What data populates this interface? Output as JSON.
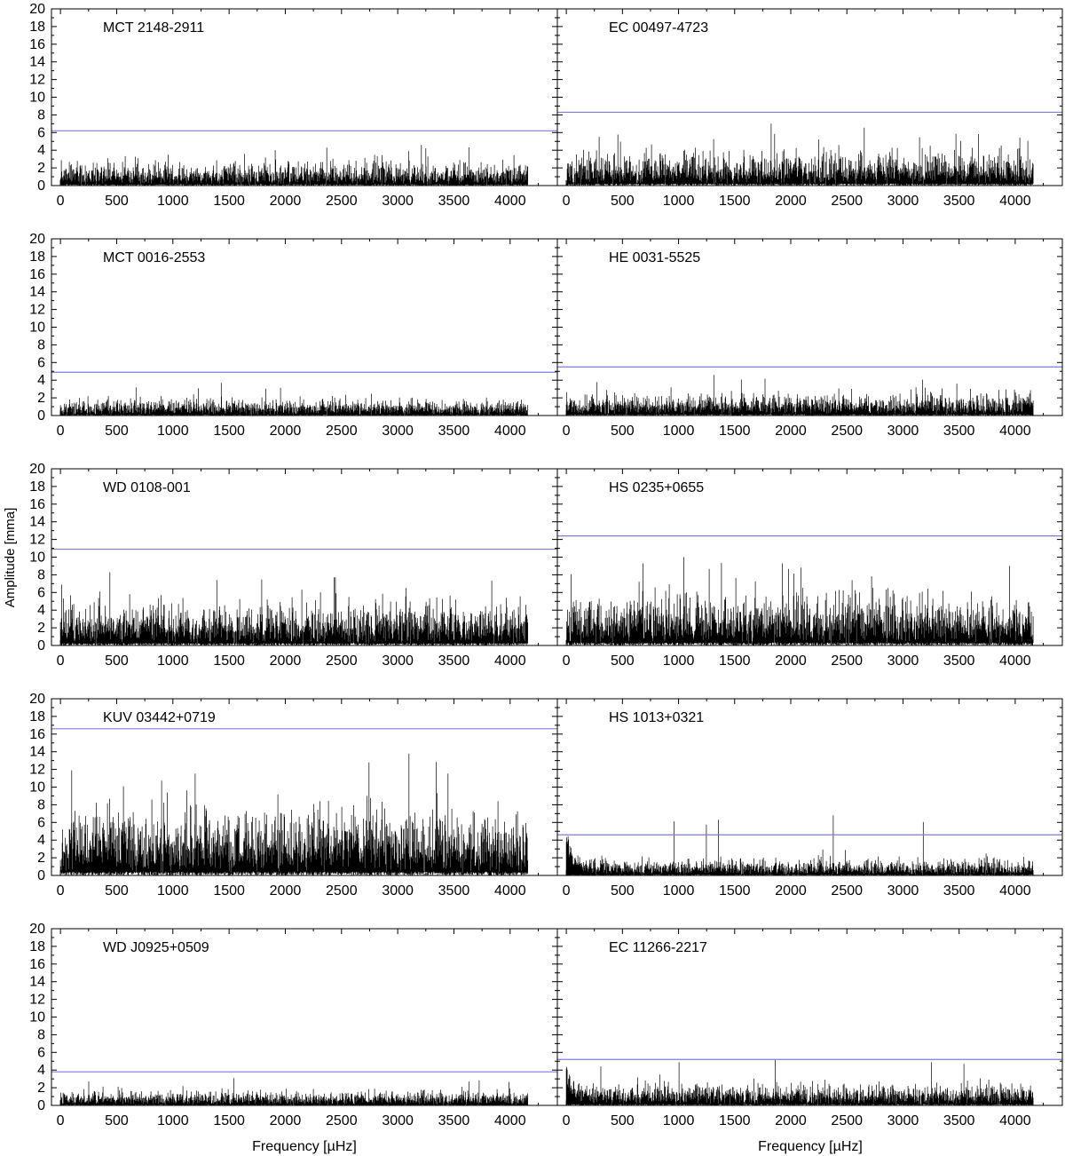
{
  "figure": {
    "ylabel": "Amplitude [mma]",
    "xlabel": "Frequency [µHz]"
  },
  "chart_data": {
    "type": "line",
    "layout": "5 rows x 2 columns",
    "xlim": [
      -80,
      4420
    ],
    "ylim": [
      0,
      20
    ],
    "x_ticks": [
      0,
      500,
      1000,
      1500,
      2000,
      2500,
      3000,
      3500,
      4000
    ],
    "y_ticks": [
      0,
      2,
      4,
      6,
      8,
      10,
      12,
      14,
      16,
      18,
      20
    ],
    "x_data_range": [
      0,
      4160
    ],
    "grid": false,
    "noise_color": "#000000",
    "threshold_color": "#7b7bd8",
    "panels": [
      {
        "name": "MCT 2148-2911",
        "threshold": 6.2,
        "typical_amplitude": 1.3,
        "max_amplitude": 4.6,
        "low_freq_excess": 0
      },
      {
        "name": "EC 00497-4723",
        "threshold": 8.3,
        "typical_amplitude": 1.9,
        "max_amplitude": 7.0,
        "low_freq_excess": 0
      },
      {
        "name": "MCT 0016-2553",
        "threshold": 4.9,
        "typical_amplitude": 0.9,
        "max_amplitude": 3.7,
        "low_freq_excess": 0
      },
      {
        "name": "HE 0031-5525",
        "threshold": 5.5,
        "typical_amplitude": 1.2,
        "max_amplitude": 4.6,
        "low_freq_excess": 0
      },
      {
        "name": "WD 0108-001",
        "threshold": 10.9,
        "typical_amplitude": 2.4,
        "max_amplitude": 8.3,
        "low_freq_excess": 0
      },
      {
        "name": "HS 0235+0655",
        "threshold": 12.4,
        "typical_amplitude": 2.9,
        "max_amplitude": 10.0,
        "low_freq_excess": 0
      },
      {
        "name": "KUV 03442+0719",
        "threshold": 16.6,
        "typical_amplitude": 3.6,
        "max_amplitude": 13.8,
        "low_freq_excess": 0
      },
      {
        "name": "HS 1013+0321",
        "threshold": 4.6,
        "typical_amplitude": 0.9,
        "max_amplitude": 6.8,
        "low_freq_excess": 4.5
      },
      {
        "name": "WD J0925+0509",
        "threshold": 3.8,
        "typical_amplitude": 0.8,
        "max_amplitude": 3.1,
        "low_freq_excess": 0
      },
      {
        "name": "EC 11266-2217",
        "threshold": 5.2,
        "typical_amplitude": 1.2,
        "max_amplitude": 5.2,
        "low_freq_excess": 3.4
      }
    ]
  }
}
